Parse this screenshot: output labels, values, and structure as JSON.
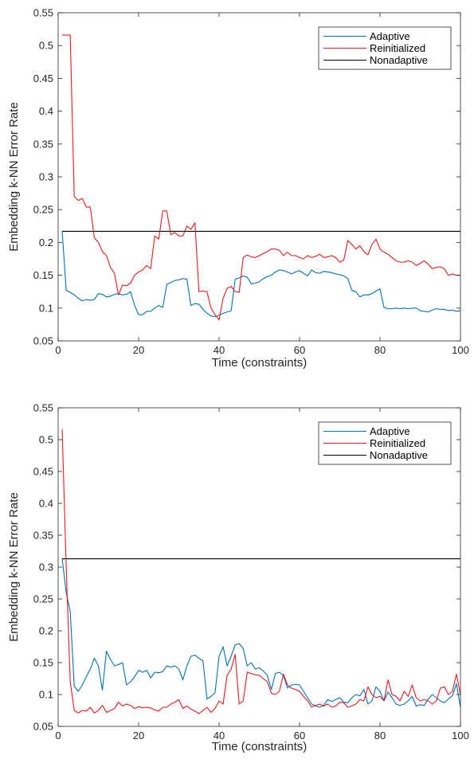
{
  "chart_data": [
    {
      "type": "line",
      "title": "",
      "xlabel": "Time (constraints)",
      "ylabel": "Embedding k-NN Error Rate",
      "xlim": [
        0,
        100
      ],
      "ylim": [
        0.05,
        0.55
      ],
      "xticks": [
        0,
        20,
        40,
        60,
        80,
        100
      ],
      "yticks": [
        0.05,
        0.1,
        0.15,
        0.2,
        0.25,
        0.3,
        0.35,
        0.4,
        0.45,
        0.5,
        0.55
      ],
      "xtick_labels": [
        "0",
        "20",
        "40",
        "60",
        "80",
        "100"
      ],
      "ytick_labels": [
        "0.05",
        "0.1",
        "0.15",
        "0.2",
        "0.25",
        "0.3",
        "0.35",
        "0.4",
        "0.45",
        "0.5",
        "0.55"
      ],
      "grid": false,
      "legend_position": "top-right",
      "series": [
        {
          "name": "Adaptive",
          "color": "#0072BD",
          "x": [
            1,
            2,
            3,
            4,
            5,
            6,
            7,
            8,
            9,
            10,
            11,
            12,
            13,
            14,
            15,
            16,
            17,
            18,
            19,
            20,
            21,
            22,
            23,
            24,
            25,
            26,
            27,
            28,
            29,
            30,
            31,
            32,
            33,
            34,
            35,
            36,
            37,
            38,
            39,
            40,
            41,
            42,
            43,
            44,
            45,
            46,
            47,
            48,
            49,
            50,
            51,
            52,
            53,
            54,
            55,
            56,
            57,
            58,
            59,
            60,
            61,
            62,
            63,
            64,
            65,
            66,
            67,
            68,
            69,
            70,
            71,
            72,
            73,
            74,
            75,
            76,
            77,
            78,
            79,
            80,
            81,
            82,
            83,
            84,
            85,
            86,
            87,
            88,
            89,
            90,
            91,
            92,
            93,
            94,
            95,
            96,
            97,
            98,
            99,
            100
          ],
          "y": [
            0.217,
            0.127,
            0.124,
            0.12,
            0.115,
            0.111,
            0.113,
            0.112,
            0.113,
            0.122,
            0.121,
            0.117,
            0.118,
            0.121,
            0.122,
            0.12,
            0.121,
            0.125,
            0.104,
            0.09,
            0.09,
            0.095,
            0.095,
            0.1,
            0.104,
            0.101,
            0.136,
            0.139,
            0.142,
            0.143,
            0.145,
            0.144,
            0.104,
            0.107,
            0.106,
            0.098,
            0.092,
            0.088,
            0.087,
            0.089,
            0.092,
            0.094,
            0.096,
            0.144,
            0.146,
            0.149,
            0.147,
            0.137,
            0.138,
            0.14,
            0.145,
            0.148,
            0.15,
            0.155,
            0.158,
            0.157,
            0.155,
            0.152,
            0.155,
            0.157,
            0.153,
            0.149,
            0.158,
            0.154,
            0.153,
            0.156,
            0.155,
            0.154,
            0.152,
            0.151,
            0.149,
            0.145,
            0.127,
            0.125,
            0.117,
            0.12,
            0.12,
            0.122,
            0.126,
            0.129,
            0.101,
            0.099,
            0.099,
            0.1,
            0.099,
            0.1,
            0.099,
            0.1,
            0.1,
            0.096,
            0.095,
            0.094,
            0.097,
            0.099,
            0.098,
            0.098,
            0.096,
            0.097,
            0.095,
            0.096
          ]
        },
        {
          "name": "Reinitialized",
          "color": "#E41A1C",
          "x": [
            1,
            2,
            3,
            4,
            5,
            6,
            7,
            8,
            9,
            10,
            11,
            12,
            13,
            14,
            15,
            16,
            17,
            18,
            19,
            20,
            21,
            22,
            23,
            24,
            25,
            26,
            27,
            28,
            29,
            30,
            31,
            32,
            33,
            34,
            35,
            36,
            37,
            38,
            39,
            40,
            41,
            42,
            43,
            44,
            45,
            46,
            47,
            48,
            49,
            50,
            51,
            52,
            53,
            54,
            55,
            56,
            57,
            58,
            59,
            60,
            61,
            62,
            63,
            64,
            65,
            66,
            67,
            68,
            69,
            70,
            71,
            72,
            73,
            74,
            75,
            76,
            77,
            78,
            79,
            80,
            81,
            82,
            83,
            84,
            85,
            86,
            87,
            88,
            89,
            90,
            91,
            92,
            93,
            94,
            95,
            96,
            97,
            98,
            99,
            100
          ],
          "y": [
            0.516,
            0.516,
            0.516,
            0.27,
            0.264,
            0.267,
            0.254,
            0.254,
            0.207,
            0.2,
            0.186,
            0.18,
            0.162,
            0.153,
            0.12,
            0.135,
            0.134,
            0.138,
            0.15,
            0.155,
            0.158,
            0.165,
            0.16,
            0.21,
            0.205,
            0.248,
            0.248,
            0.212,
            0.215,
            0.21,
            0.21,
            0.225,
            0.22,
            0.23,
            0.125,
            0.126,
            0.125,
            0.1,
            0.09,
            0.082,
            0.115,
            0.13,
            0.133,
            0.125,
            0.124,
            0.177,
            0.181,
            0.178,
            0.177,
            0.18,
            0.183,
            0.186,
            0.19,
            0.19,
            0.188,
            0.18,
            0.185,
            0.18,
            0.18,
            0.177,
            0.175,
            0.18,
            0.177,
            0.179,
            0.182,
            0.177,
            0.178,
            0.18,
            0.177,
            0.17,
            0.173,
            0.203,
            0.197,
            0.19,
            0.195,
            0.186,
            0.181,
            0.197,
            0.205,
            0.19,
            0.185,
            0.182,
            0.177,
            0.172,
            0.17,
            0.17,
            0.172,
            0.17,
            0.165,
            0.168,
            0.172,
            0.167,
            0.16,
            0.162,
            0.163,
            0.16,
            0.15,
            0.152,
            0.15,
            0.15
          ]
        },
        {
          "name": "Nonadaptive",
          "color": "#000000",
          "x": [
            1,
            100
          ],
          "y": [
            0.217,
            0.217
          ]
        }
      ]
    },
    {
      "type": "line",
      "title": "",
      "xlabel": "Time (constraints)",
      "ylabel": "Embedding k-NN Error Rate",
      "xlim": [
        0,
        100
      ],
      "ylim": [
        0.05,
        0.55
      ],
      "xticks": [
        0,
        20,
        40,
        60,
        80,
        100
      ],
      "yticks": [
        0.05,
        0.1,
        0.15,
        0.2,
        0.25,
        0.3,
        0.35,
        0.4,
        0.45,
        0.5,
        0.55
      ],
      "xtick_labels": [
        "0",
        "20",
        "40",
        "60",
        "80",
        "100"
      ],
      "ytick_labels": [
        "0.05",
        "0.1",
        "0.15",
        "0.2",
        "0.25",
        "0.3",
        "0.35",
        "0.4",
        "0.45",
        "0.5",
        "0.55"
      ],
      "grid": false,
      "legend_position": "top-right",
      "series": [
        {
          "name": "Adaptive",
          "color": "#0072BD",
          "x": [
            1,
            2,
            3,
            4,
            5,
            6,
            7,
            8,
            9,
            10,
            11,
            12,
            13,
            14,
            15,
            16,
            17,
            18,
            19,
            20,
            21,
            22,
            23,
            24,
            25,
            26,
            27,
            28,
            29,
            30,
            31,
            32,
            33,
            34,
            35,
            36,
            37,
            38,
            39,
            40,
            41,
            42,
            43,
            44,
            45,
            46,
            47,
            48,
            49,
            50,
            51,
            52,
            53,
            54,
            55,
            56,
            57,
            58,
            59,
            60,
            61,
            62,
            63,
            64,
            65,
            66,
            67,
            68,
            69,
            70,
            71,
            72,
            73,
            74,
            75,
            76,
            77,
            78,
            79,
            80,
            81,
            82,
            83,
            84,
            85,
            86,
            87,
            88,
            89,
            90,
            91,
            92,
            93,
            94,
            95,
            96,
            97,
            98,
            99,
            100
          ],
          "y": [
            0.313,
            0.26,
            0.23,
            0.113,
            0.105,
            0.115,
            0.128,
            0.14,
            0.157,
            0.145,
            0.107,
            0.168,
            0.155,
            0.145,
            0.147,
            0.15,
            0.115,
            0.12,
            0.128,
            0.138,
            0.135,
            0.138,
            0.126,
            0.135,
            0.134,
            0.136,
            0.145,
            0.143,
            0.145,
            0.14,
            0.123,
            0.145,
            0.16,
            0.162,
            0.157,
            0.153,
            0.093,
            0.097,
            0.103,
            0.16,
            0.175,
            0.145,
            0.16,
            0.178,
            0.18,
            0.172,
            0.145,
            0.15,
            0.14,
            0.142,
            0.137,
            0.13,
            0.108,
            0.133,
            0.135,
            0.13,
            0.11,
            0.115,
            0.116,
            0.115,
            0.105,
            0.095,
            0.085,
            0.082,
            0.08,
            0.083,
            0.092,
            0.089,
            0.092,
            0.095,
            0.088,
            0.087,
            0.095,
            0.1,
            0.098,
            0.108,
            0.085,
            0.09,
            0.112,
            0.105,
            0.09,
            0.104,
            0.095,
            0.085,
            0.083,
            0.085,
            0.09,
            0.097,
            0.082,
            0.084,
            0.083,
            0.093,
            0.1,
            0.095,
            0.09,
            0.087,
            0.093,
            0.098,
            0.117,
            0.08
          ]
        },
        {
          "name": "Reinitialized",
          "color": "#E41A1C",
          "x": [
            1,
            2,
            3,
            4,
            5,
            6,
            7,
            8,
            9,
            10,
            11,
            12,
            13,
            14,
            15,
            16,
            17,
            18,
            19,
            20,
            21,
            22,
            23,
            24,
            25,
            26,
            27,
            28,
            29,
            30,
            31,
            32,
            33,
            34,
            35,
            36,
            37,
            38,
            39,
            40,
            41,
            42,
            43,
            44,
            45,
            46,
            47,
            48,
            49,
            50,
            51,
            52,
            53,
            54,
            55,
            56,
            57,
            58,
            59,
            60,
            61,
            62,
            63,
            64,
            65,
            66,
            67,
            68,
            69,
            70,
            71,
            72,
            73,
            74,
            75,
            76,
            77,
            78,
            79,
            80,
            81,
            82,
            83,
            84,
            85,
            86,
            87,
            88,
            89,
            90,
            91,
            92,
            93,
            94,
            95,
            96,
            97,
            98,
            99,
            100
          ],
          "y": [
            0.516,
            0.3,
            0.12,
            0.075,
            0.071,
            0.075,
            0.074,
            0.08,
            0.071,
            0.075,
            0.083,
            0.072,
            0.075,
            0.078,
            0.088,
            0.082,
            0.085,
            0.083,
            0.078,
            0.081,
            0.079,
            0.08,
            0.079,
            0.076,
            0.074,
            0.08,
            0.08,
            0.085,
            0.088,
            0.092,
            0.078,
            0.082,
            0.077,
            0.074,
            0.07,
            0.075,
            0.08,
            0.072,
            0.078,
            0.09,
            0.085,
            0.13,
            0.14,
            0.163,
            0.085,
            0.09,
            0.135,
            0.133,
            0.131,
            0.13,
            0.125,
            0.12,
            0.102,
            0.1,
            0.105,
            0.132,
            0.115,
            0.11,
            0.108,
            0.105,
            0.097,
            0.09,
            0.08,
            0.083,
            0.085,
            0.082,
            0.085,
            0.08,
            0.082,
            0.088,
            0.087,
            0.08,
            0.082,
            0.085,
            0.092,
            0.09,
            0.112,
            0.1,
            0.095,
            0.097,
            0.09,
            0.123,
            0.1,
            0.097,
            0.09,
            0.105,
            0.097,
            0.115,
            0.095,
            0.09,
            0.092,
            0.09,
            0.085,
            0.09,
            0.11,
            0.112,
            0.1,
            0.105,
            0.132,
            0.1
          ]
        },
        {
          "name": "Nonadaptive",
          "color": "#000000",
          "x": [
            1,
            100
          ],
          "y": [
            0.313,
            0.313
          ]
        }
      ]
    }
  ]
}
